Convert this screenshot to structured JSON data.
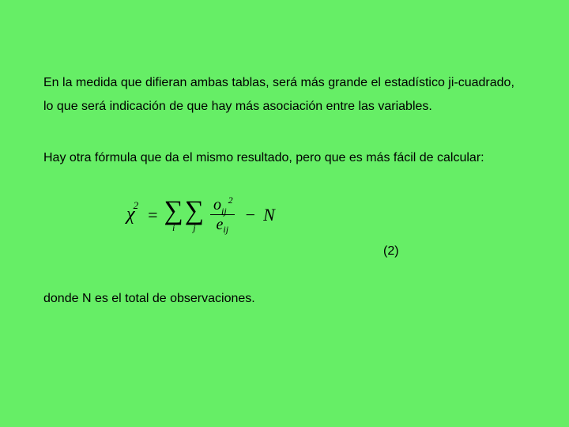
{
  "background_color": "#66ee66",
  "text_color": "#000000",
  "font_family": "Verdana",
  "font_size_pt": 12,
  "paragraph1": "En la medida que difieran ambas tablas, será más grande el estadístico ji-cuadrado, lo que será indicación de que hay más asociación entre las variables.",
  "paragraph2": "Hay otra fórmula que da el mismo resultado, pero que es más fácil de calcular:",
  "formula": {
    "lhs_symbol": "χ",
    "lhs_exponent": "2",
    "equals": "=",
    "outer_sum_index": "i",
    "inner_sum_index": "j",
    "numerator_base": "o",
    "numerator_subscript": "ij",
    "numerator_exponent": "2",
    "denominator_base": "e",
    "denominator_subscript": "ij",
    "minus": "−",
    "tail_var": "N",
    "equation_number": "(2)",
    "formula_font": "Times New Roman italic",
    "formula_color": "#000000"
  },
  "paragraph3": "donde N es el total de observaciones."
}
